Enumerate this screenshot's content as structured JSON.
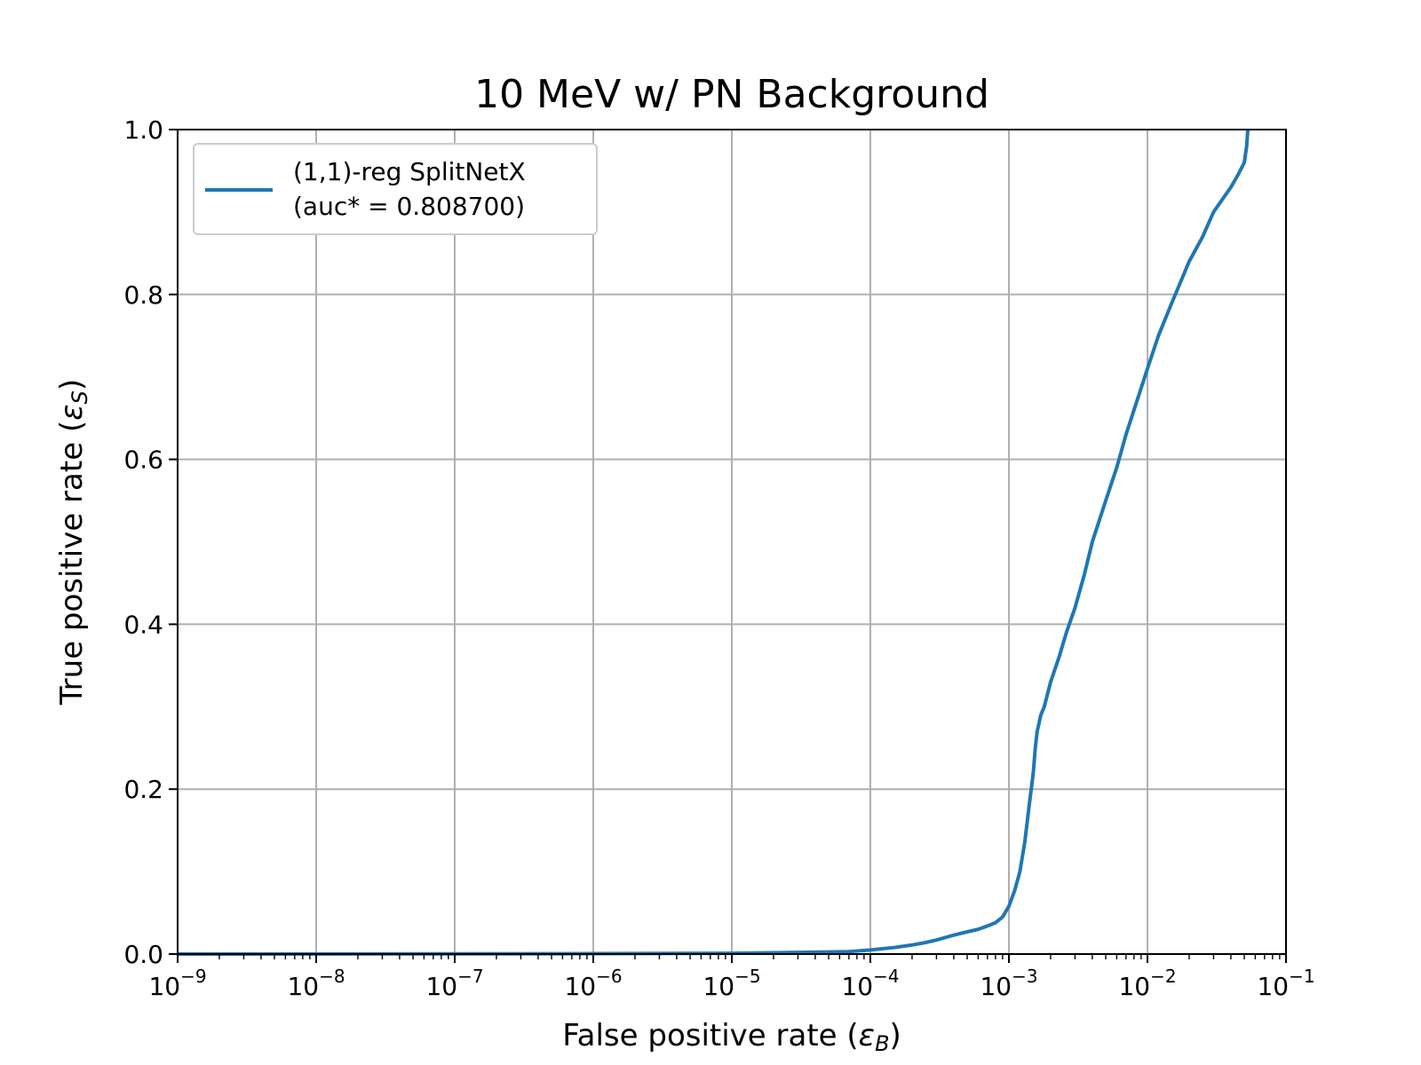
{
  "chart_data": {
    "type": "line",
    "title": "10 MeV w/ PN Background",
    "xlabel": "False positive rate (",
    "xlabel_symbol": "ε",
    "xlabel_subscript": "B",
    "xlabel_suffix": ")",
    "ylabel": "True positive rate (",
    "ylabel_symbol": "ε",
    "ylabel_subscript": "S",
    "ylabel_suffix": ")",
    "x_scale": "log",
    "xlim": [
      1e-09,
      0.1
    ],
    "ylim": [
      0.0,
      1.0
    ],
    "grid": true,
    "legend_position": "upper-left",
    "x_ticks": [
      {
        "value": 1e-09,
        "base": "10",
        "exp": "−9"
      },
      {
        "value": 1e-08,
        "base": "10",
        "exp": "−8"
      },
      {
        "value": 1e-07,
        "base": "10",
        "exp": "−7"
      },
      {
        "value": 1e-06,
        "base": "10",
        "exp": "−6"
      },
      {
        "value": 1e-05,
        "base": "10",
        "exp": "−5"
      },
      {
        "value": 0.0001,
        "base": "10",
        "exp": "−4"
      },
      {
        "value": 0.001,
        "base": "10",
        "exp": "−3"
      },
      {
        "value": 0.01,
        "base": "10",
        "exp": "−2"
      },
      {
        "value": 0.1,
        "base": "10",
        "exp": "−1"
      }
    ],
    "y_ticks": [
      {
        "value": 0.0,
        "label": "0.0"
      },
      {
        "value": 0.2,
        "label": "0.2"
      },
      {
        "value": 0.4,
        "label": "0.4"
      },
      {
        "value": 0.6,
        "label": "0.6"
      },
      {
        "value": 0.8,
        "label": "0.8"
      },
      {
        "value": 1.0,
        "label": "1.0"
      }
    ],
    "series": [
      {
        "name_line1": "(1,1)-reg SplitNetX",
        "name_line2": "(auc* = 0.808700)",
        "color": "#1f77b4",
        "x": [
          1e-09,
          1e-06,
          1e-05,
          3e-05,
          7e-05,
          0.0001,
          0.00015,
          0.0002,
          0.00025,
          0.0003,
          0.0004,
          0.0005,
          0.0006,
          0.0007,
          0.0008,
          0.0009,
          0.001,
          0.0011,
          0.0012,
          0.0013,
          0.0014,
          0.0015,
          0.00155,
          0.0016,
          0.0017,
          0.0018,
          0.002,
          0.0023,
          0.0026,
          0.003,
          0.0035,
          0.004,
          0.005,
          0.006,
          0.007,
          0.008,
          0.01,
          0.012,
          0.015,
          0.02,
          0.025,
          0.03,
          0.04,
          0.045,
          0.05,
          0.052,
          0.053
        ],
        "y": [
          0.0,
          0.0005,
          0.001,
          0.002,
          0.003,
          0.005,
          0.008,
          0.011,
          0.014,
          0.017,
          0.023,
          0.027,
          0.03,
          0.034,
          0.038,
          0.045,
          0.058,
          0.077,
          0.1,
          0.135,
          0.18,
          0.22,
          0.25,
          0.27,
          0.29,
          0.3,
          0.33,
          0.36,
          0.39,
          0.42,
          0.46,
          0.5,
          0.55,
          0.59,
          0.63,
          0.66,
          0.71,
          0.75,
          0.79,
          0.84,
          0.87,
          0.9,
          0.93,
          0.945,
          0.96,
          0.98,
          1.0
        ]
      }
    ]
  }
}
